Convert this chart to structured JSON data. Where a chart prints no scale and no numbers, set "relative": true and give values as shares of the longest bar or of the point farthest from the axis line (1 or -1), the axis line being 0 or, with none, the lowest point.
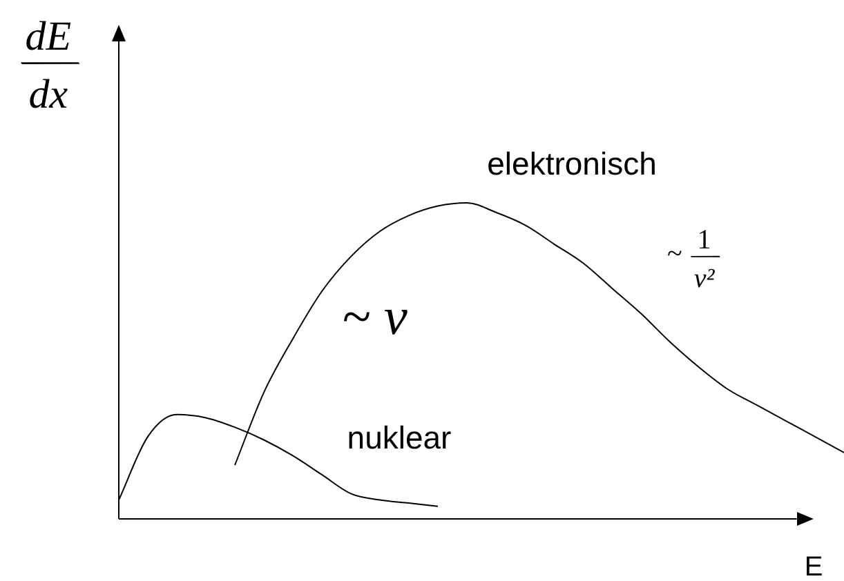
{
  "chart_data": {
    "type": "line",
    "relative": true,
    "ylabel": "dE/dx",
    "xlabel": "E",
    "marker": "none",
    "categories": [
      null,
      null,
      null,
      null,
      null,
      null,
      null,
      null,
      null,
      null,
      null,
      null,
      null,
      null,
      null,
      null,
      null,
      null,
      null,
      null,
      null,
      null,
      null,
      null,
      null,
      null
    ],
    "series": [
      {
        "name": "elektronisch",
        "color": "#000000",
        "values": [
          null,
          null,
          null,
          null,
          0.17,
          0.4,
          0.57,
          0.72,
          0.83,
          0.91,
          0.96,
          0.99,
          1.0,
          0.97,
          0.93,
          0.87,
          0.81,
          0.73,
          0.65,
          0.56,
          0.48,
          0.41,
          0.36,
          0.31,
          0.26,
          0.21
        ]
      },
      {
        "name": "nuklear",
        "color": "#000000",
        "values": [
          0.06,
          0.26,
          0.33,
          0.32,
          0.29,
          0.25,
          0.2,
          0.14,
          0.08,
          0.06,
          0.05,
          0.04,
          null,
          null,
          null,
          null,
          null,
          null,
          null,
          null,
          null,
          null,
          null,
          null,
          null,
          null
        ]
      }
    ],
    "annotations": [
      "~ v",
      "~ 1/v²"
    ]
  }
}
